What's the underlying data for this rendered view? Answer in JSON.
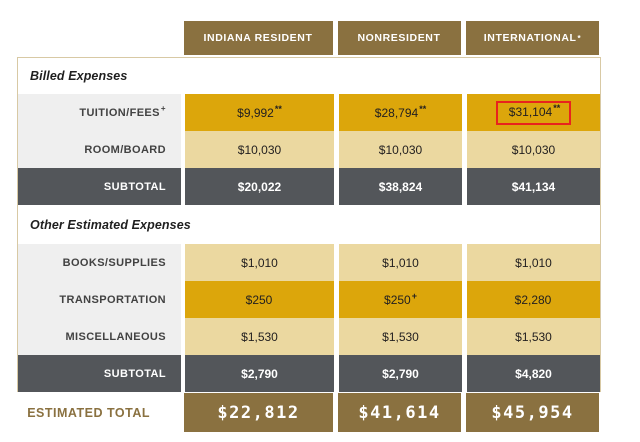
{
  "table": {
    "columns": [
      {
        "label": "INDIANA RESIDENT",
        "sup": ""
      },
      {
        "label": "NONRESIDENT",
        "sup": ""
      },
      {
        "label": "INTERNATIONAL",
        "sup": "*"
      }
    ],
    "sections": [
      {
        "title": "Billed Expenses",
        "rows": [
          {
            "label": "TUITION/FEES",
            "label_sup": "+",
            "values": [
              {
                "text": "$9,992",
                "sup": "**"
              },
              {
                "text": "$28,794",
                "sup": "**"
              },
              {
                "text": "$31,104",
                "sup": "**"
              }
            ]
          },
          {
            "label": "ROOM/BOARD",
            "label_sup": "",
            "values": [
              {
                "text": "$10,030",
                "sup": ""
              },
              {
                "text": "$10,030",
                "sup": ""
              },
              {
                "text": "$10,030",
                "sup": ""
              }
            ]
          },
          {
            "label": "SUBTOTAL",
            "label_sup": "",
            "values": [
              {
                "text": "$20,022",
                "sup": ""
              },
              {
                "text": "$38,824",
                "sup": ""
              },
              {
                "text": "$41,134",
                "sup": ""
              }
            ]
          }
        ]
      },
      {
        "title": "Other Estimated Expenses",
        "rows": [
          {
            "label": "BOOKS/SUPPLIES",
            "label_sup": "",
            "values": [
              {
                "text": "$1,010",
                "sup": ""
              },
              {
                "text": "$1,010",
                "sup": ""
              },
              {
                "text": "$1,010",
                "sup": ""
              }
            ]
          },
          {
            "label": "TRANSPORTATION",
            "label_sup": "",
            "values": [
              {
                "text": "$250",
                "sup": ""
              },
              {
                "text": "$250",
                "sup": "+"
              },
              {
                "text": "$2,280",
                "sup": ""
              }
            ]
          },
          {
            "label": "MISCELLANEOUS",
            "label_sup": "",
            "values": [
              {
                "text": "$1,530",
                "sup": ""
              },
              {
                "text": "$1,530",
                "sup": ""
              },
              {
                "text": "$1,530",
                "sup": ""
              }
            ]
          },
          {
            "label": "SUBTOTAL",
            "label_sup": "",
            "values": [
              {
                "text": "$2,790",
                "sup": ""
              },
              {
                "text": "$2,790",
                "sup": ""
              },
              {
                "text": "$4,820",
                "sup": ""
              }
            ]
          }
        ]
      }
    ],
    "total": {
      "label": "ESTIMATED TOTAL",
      "values": [
        {
          "text": "$22,812"
        },
        {
          "text": "$41,614"
        },
        {
          "text": "$45,954"
        }
      ]
    }
  },
  "annotation": {
    "description": "red highlight box around international tuition/fees value",
    "highlighted_value": "$31,104",
    "color": "#e8231d"
  },
  "colors": {
    "header_brown": "#8a7140",
    "gold_row": "#dca60b",
    "tan_row": "#ebd8a0",
    "slate_row": "#53565a",
    "label_gray": "#efefef",
    "border_tan": "#d8c9a4",
    "total_value_bg": "#8a7140",
    "highlight_red": "#e8231d"
  },
  "chart_data": {
    "type": "table",
    "columns": [
      "",
      "INDIANA RESIDENT",
      "NONRESIDENT",
      "INTERNATIONAL*"
    ],
    "rows": [
      [
        "Billed Expenses",
        "",
        "",
        ""
      ],
      [
        "TUITION/FEES+",
        "$9,992**",
        "$28,794**",
        "$31,104**"
      ],
      [
        "ROOM/BOARD",
        "$10,030",
        "$10,030",
        "$10,030"
      ],
      [
        "SUBTOTAL",
        "$20,022",
        "$38,824",
        "$41,134"
      ],
      [
        "Other Estimated Expenses",
        "",
        "",
        ""
      ],
      [
        "BOOKS/SUPPLIES",
        "$1,010",
        "$1,010",
        "$1,010"
      ],
      [
        "TRANSPORTATION",
        "$250",
        "$250+",
        "$2,280"
      ],
      [
        "MISCELLANEOUS",
        "$1,530",
        "$1,530",
        "$1,530"
      ],
      [
        "SUBTOTAL",
        "$2,790",
        "$2,790",
        "$4,820"
      ],
      [
        "ESTIMATED TOTAL",
        "$22,812",
        "$41,614",
        "$45,954"
      ]
    ],
    "annotations": [
      "red rectangle drawn around $31,104 (INTERNATIONAL TUITION/FEES cell)"
    ],
    "legend_position": "none",
    "grid": false
  }
}
